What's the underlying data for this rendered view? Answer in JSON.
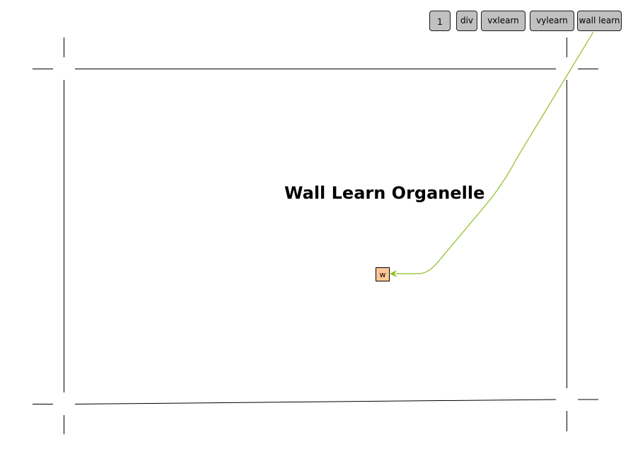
{
  "toolbar": {
    "buttons": [
      {
        "id": "one",
        "label": "1"
      },
      {
        "id": "div",
        "label": "div"
      },
      {
        "id": "vxlearn",
        "label": "vxlearn"
      },
      {
        "id": "vylearn",
        "label": "vylearn"
      },
      {
        "id": "wall-learn",
        "label": "wall learn"
      }
    ]
  },
  "diagram": {
    "title": "Wall Learn Organelle",
    "node": {
      "label": "w",
      "fill": "#ffc896"
    },
    "connector": {
      "color": "#8cbe1e"
    }
  }
}
